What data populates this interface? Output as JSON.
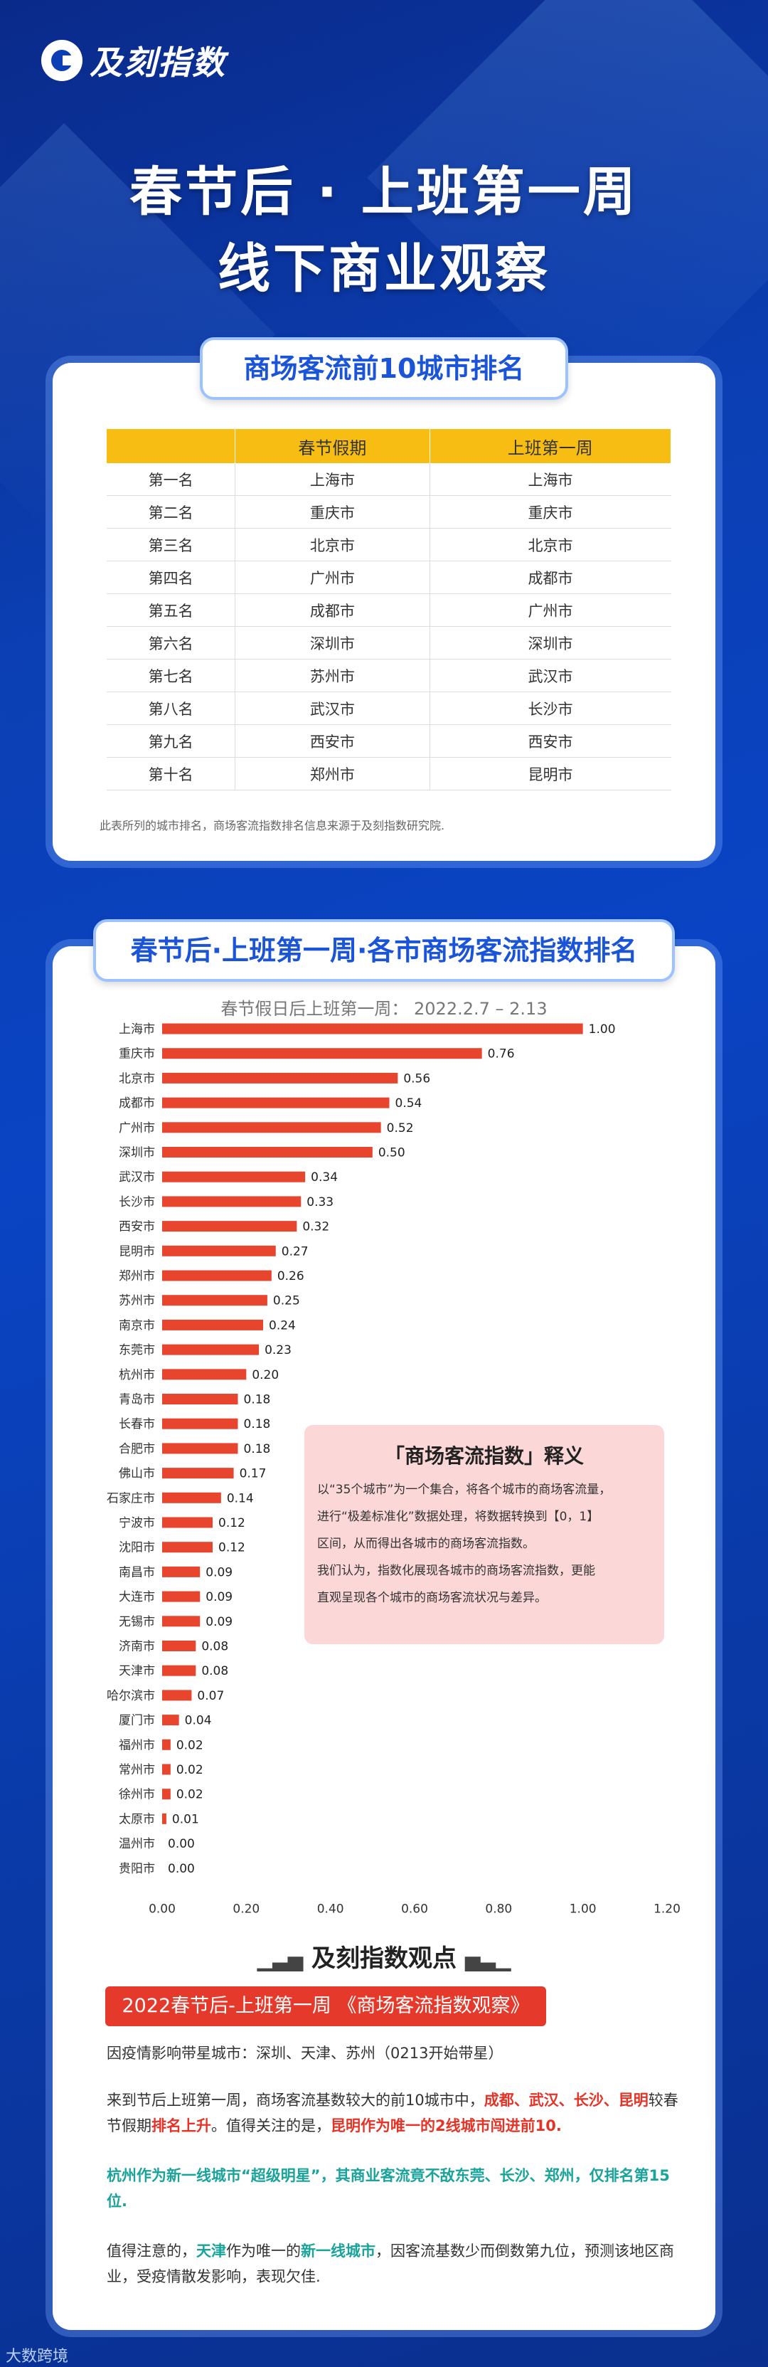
{
  "brand": {
    "logo_text": "及刻指数"
  },
  "header": {
    "title_line1": "春节后 · 上班第一周",
    "title_line2": "线下商业观察"
  },
  "top10": {
    "pill": "商场客流前10城市排名",
    "columns": [
      "",
      "春节假期",
      "上班第一周"
    ],
    "rows": [
      [
        "第一名",
        "上海市",
        "上海市"
      ],
      [
        "第二名",
        "重庆市",
        "重庆市"
      ],
      [
        "第三名",
        "北京市",
        "北京市"
      ],
      [
        "第四名",
        "广州市",
        "成都市"
      ],
      [
        "第五名",
        "成都市",
        "广州市"
      ],
      [
        "第六名",
        "深圳市",
        "深圳市"
      ],
      [
        "第七名",
        "苏州市",
        "武汉市"
      ],
      [
        "第八名",
        "武汉市",
        "长沙市"
      ],
      [
        "第九名",
        "西安市",
        "西安市"
      ],
      [
        "第十名",
        "郑州市",
        "昆明市"
      ]
    ],
    "note": "此表所列的城市排名，商场客流指数排名信息来源于及刻指数研究院."
  },
  "chart_section": {
    "pill": "春节后·上班第一周·各市商场客流指数排名",
    "subtitle": "春节假日后上班第一周： 2022.2.7 – 2.13"
  },
  "chart_data": {
    "type": "bar",
    "orientation": "horizontal",
    "title": "春节假日后上班第一周： 2022.2.7 – 2.13",
    "categories": [
      "上海市",
      "重庆市",
      "北京市",
      "成都市",
      "广州市",
      "深圳市",
      "武汉市",
      "长沙市",
      "西安市",
      "昆明市",
      "郑州市",
      "苏州市",
      "南京市",
      "东莞市",
      "杭州市",
      "青岛市",
      "长春市",
      "合肥市",
      "佛山市",
      "石家庄市",
      "宁波市",
      "沈阳市",
      "南昌市",
      "大连市",
      "无锡市",
      "济南市",
      "天津市",
      "哈尔滨市",
      "厦门市",
      "福州市",
      "常州市",
      "徐州市",
      "太原市",
      "温州市",
      "贵阳市"
    ],
    "values": [
      1.0,
      0.76,
      0.56,
      0.54,
      0.52,
      0.5,
      0.34,
      0.33,
      0.32,
      0.27,
      0.26,
      0.25,
      0.24,
      0.23,
      0.2,
      0.18,
      0.18,
      0.18,
      0.17,
      0.14,
      0.12,
      0.12,
      0.09,
      0.09,
      0.09,
      0.08,
      0.08,
      0.07,
      0.04,
      0.02,
      0.02,
      0.02,
      0.01,
      0.0,
      0.0
    ],
    "value_labels": [
      "1.00",
      "0.76",
      "0.56",
      "0.54",
      "0.52",
      "0.50",
      "0.34",
      "0.33",
      "0.32",
      "0.27",
      "0.26",
      "0.25",
      "0.24",
      "0.23",
      "0.20",
      "0.18",
      "0.18",
      "0.18",
      "0.17",
      "0.14",
      "0.12",
      "0.12",
      "0.09",
      "0.09",
      "0.09",
      "0.08",
      "0.08",
      "0.07",
      "0.04",
      "0.02",
      "0.02",
      "0.02",
      "0.01",
      "0.00",
      "0.00"
    ],
    "xlim": [
      0,
      1.2
    ],
    "xticks": [
      "0.00",
      "0.20",
      "0.40",
      "0.60",
      "0.80",
      "1.00",
      "1.20"
    ],
    "bar_color": "#e8452f"
  },
  "explain": {
    "title": "「商场客流指数」释义",
    "lines": [
      "以“35个城市”为一个集合，将各个城市的商场客流量，",
      "进行“极差标准化”数据处理，将数据转换到【0，1】",
      "区间，从而得出各城市的商场客流指数。",
      "我们认为，指数化展现各城市的商场客流指数，更能",
      "直观呈现各个城市的商场客流状况与差异。"
    ]
  },
  "viewpoint": {
    "title": "及刻指数观点",
    "label": "2022春节后-上班第一周 《商场客流指数观察》",
    "p1": "因疫情影响带星城市：深圳、天津、苏州（0213开始带星）",
    "p2a": "来到节后上班第一周，商场客流基数较大的前10城市中，",
    "p2b": "成都、武汉、长沙、昆明",
    "p2c": "较春节假期",
    "p2d": "排名上升",
    "p2e": "。值得关注的是，",
    "p2f": "昆明作为唯一的2线城市闯进前10.",
    "p3": "杭州作为新一线城市“超级明星”，其商业客流竟不敌东莞、长沙、郑州，仅排名第15位.",
    "p4a": "值得注意的，",
    "p4b": "天津",
    "p4c": "作为唯一的",
    "p4d": "新一线城市",
    "p4e": "，因客流基数少而倒数第九位，预测该地区商业，受疫情散发影响，表现欠佳."
  },
  "footer": {
    "text": "大数跨境"
  }
}
